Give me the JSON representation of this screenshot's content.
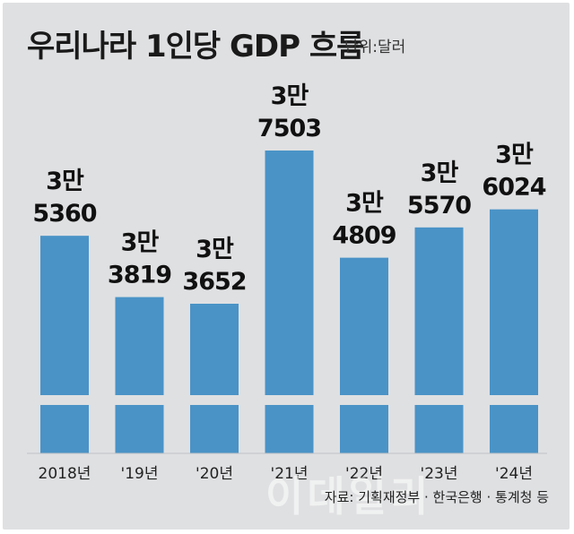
{
  "header": {
    "title": "우리나라 1인당 GDP 흐름",
    "unit": "단위:달러"
  },
  "footer": {
    "source": "자료: 기획재정부 · 한국은행 · 통계청 등",
    "watermark": "이데일리"
  },
  "colors": {
    "bar": "#4a93c7",
    "background": "#dfe0e2",
    "text": "#111111"
  },
  "chart_data": {
    "type": "bar",
    "title": "우리나라 1인당 GDP 흐름",
    "unit": "단위:달러",
    "categories": [
      "2018년",
      "'19년",
      "'20년",
      "'21년",
      "'22년",
      "'23년",
      "'24년"
    ],
    "values": [
      35360,
      33819,
      33652,
      37503,
      34809,
      35570,
      36024
    ],
    "value_labels": [
      [
        "3만",
        "5360"
      ],
      [
        "3만",
        "3819"
      ],
      [
        "3만",
        "3652"
      ],
      [
        "3만",
        "7503"
      ],
      [
        "3만",
        "4809"
      ],
      [
        "3만",
        "5570"
      ],
      [
        "3만",
        "6024"
      ]
    ],
    "axis_break": true,
    "grid": false,
    "legend": "none"
  }
}
